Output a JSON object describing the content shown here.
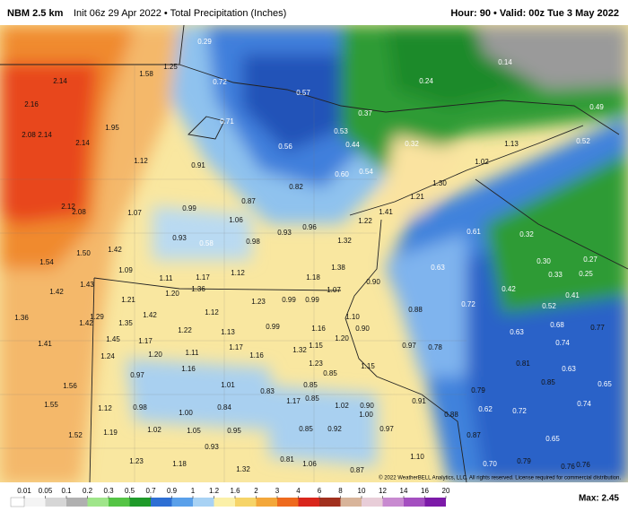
{
  "header": {
    "model": "NBM 2.5 km",
    "init": "Init 06z 29 Apr 2022 • Total Precipitation (Inches)",
    "valid": "Hour: 90 • Valid: 00z Tue 3 May 2022"
  },
  "map": {
    "points": [
      "1.58",
      "1.25",
      "2.14",
      "2.16",
      "1.95",
      "2.08",
      "2.14",
      "2.14",
      "1.12",
      "0.91",
      "0.72",
      "0.57",
      "0.37",
      "0.71",
      "0.53",
      "0.44",
      "0.56",
      "0.32",
      "0.24",
      "0.14",
      "0.49",
      "0.52",
      "1.13",
      "1.02",
      "0.60",
      "0.54",
      "0.82",
      "0.87",
      "1.30",
      "1.21",
      "2.12",
      "2.08",
      "1.07",
      "0.99",
      "1.06",
      "1.22",
      "1.41",
      "0.93",
      "0.58",
      "0.98",
      "0.93",
      "0.96",
      "1.32",
      "0.61",
      "0.32",
      "1.42",
      "1.50",
      "1.54",
      "1.09",
      "1.38",
      "0.63",
      "0.30",
      "0.27",
      "0.33",
      "0.25",
      "1.11",
      "1.17",
      "1.12",
      "1.18",
      "1.43",
      "1.42",
      "1.36",
      "1.20",
      "1.21",
      "1.23",
      "0.99",
      "0.99",
      "1.07",
      "0.90",
      "0.42",
      "0.41",
      "0.72",
      "0.52",
      "1.36",
      "1.29",
      "1.42",
      "1.35",
      "1.42",
      "1.12",
      "0.88",
      "1.10",
      "0.68",
      "0.77",
      "1.22",
      "1.13",
      "0.99",
      "1.16",
      "0.90",
      "0.63",
      "1.45",
      "1.17",
      "1.20",
      "1.41",
      "1.17",
      "1.32",
      "1.15",
      "0.97",
      "0.78",
      "0.74",
      "1.24",
      "1.20",
      "1.11",
      "1.16",
      "1.23",
      "0.81",
      "1.16",
      "0.97",
      "0.85",
      "1.15",
      "0.63",
      "0.85",
      "1.56",
      "1.01",
      "0.83",
      "0.85",
      "0.79",
      "0.65",
      "1.17",
      "0.85",
      "0.91",
      "0.74",
      "1.55",
      "1.12",
      "0.98",
      "0.84",
      "1.02",
      "0.90",
      "0.62",
      "0.72",
      "1.00",
      "1.00",
      "0.88",
      "0.97",
      "1.02",
      "1.05",
      "0.95",
      "0.85",
      "0.92",
      "1.52",
      "1.19",
      "0.87",
      "0.65",
      "0.93",
      "1.10",
      "1.23",
      "1.18",
      "0.81",
      "1.06",
      "0.87",
      "1.32",
      "0.70",
      "0.79",
      "0.76",
      "0.76",
      "0.29"
    ],
    "copyright": "© 2022 WeatherBELL Analytics, LLC. All rights reserved. License required for commercial distribution."
  },
  "colorbar": {
    "ticks": [
      0.01,
      0.05,
      0.1,
      0.2,
      0.3,
      0.5,
      0.7,
      0.9,
      1,
      1.2,
      1.6,
      2,
      3,
      4,
      6,
      8,
      10,
      12,
      14,
      16,
      20
    ],
    "colors": [
      "#f4f4f4",
      "#d6d6d6",
      "#b0b0b0",
      "#9fe58a",
      "#55c445",
      "#1f9a2a",
      "#2e6fd4",
      "#5aa0ea",
      "#a8d2f4",
      "#fbf0a8",
      "#f6d468",
      "#f3a73a",
      "#ee6a1e",
      "#d9261c",
      "#a1301e",
      "#d8b49a",
      "#e8cdd8",
      "#c88ad0",
      "#a44fc0",
      "#7c1aa8"
    ],
    "max": "Max: 2.45"
  }
}
